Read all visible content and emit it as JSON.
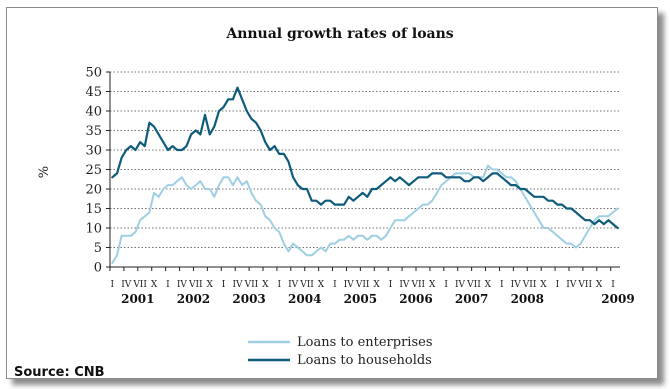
{
  "chart_data": {
    "type": "line",
    "title": "Annual growth rates of loans",
    "ylabel": "%",
    "ylim": [
      0,
      50
    ],
    "yticks": [
      0,
      5,
      10,
      15,
      20,
      25,
      30,
      35,
      40,
      45,
      50
    ],
    "grid": "horizontal dotted",
    "x_start": "2001-01",
    "quarter_labels": [
      "I",
      "IV",
      "VII",
      "X"
    ],
    "years": [
      "2001",
      "2002",
      "2003",
      "2004",
      "2005",
      "2006",
      "2007",
      "2008",
      "2009"
    ],
    "legend_position": "bottom-center",
    "series": [
      {
        "name": "Loans to enterprises",
        "color": "#9fcfe3",
        "values": [
          1,
          3,
          8,
          8,
          8,
          9,
          12,
          13,
          14,
          19,
          18,
          20,
          21,
          21,
          22,
          23,
          21,
          20,
          21,
          22,
          20,
          20,
          18,
          21,
          23,
          23,
          21,
          23,
          21,
          22,
          19,
          17,
          16,
          13,
          12,
          10,
          9,
          6,
          4,
          6,
          5,
          4,
          3,
          3,
          4,
          5,
          4,
          6,
          6,
          7,
          7,
          8,
          7,
          8,
          8,
          7,
          8,
          8,
          7,
          8,
          10,
          12,
          12,
          12,
          13,
          14,
          15,
          16,
          16,
          17,
          19,
          21,
          22,
          23,
          24,
          24,
          24,
          24,
          23,
          23,
          23,
          26,
          25,
          25,
          24,
          23,
          23,
          22,
          20,
          18,
          16,
          14,
          12,
          10,
          10,
          9,
          8,
          7,
          6,
          6,
          5,
          6,
          8,
          10,
          12,
          13,
          13,
          13,
          14,
          15
        ]
      },
      {
        "name": "Loans to households",
        "color": "#0e5b7b",
        "values": [
          23,
          24,
          28,
          30,
          31,
          30,
          32,
          31,
          37,
          36,
          34,
          32,
          30,
          31,
          30,
          30,
          31,
          34,
          35,
          34,
          39,
          34,
          36,
          40,
          41,
          43,
          43,
          46,
          43,
          40,
          38,
          37,
          35,
          32,
          30,
          31,
          29,
          29,
          27,
          23,
          21,
          20,
          20,
          17,
          17,
          16,
          17,
          17,
          16,
          16,
          16,
          18,
          17,
          18,
          19,
          18,
          20,
          20,
          21,
          22,
          23,
          22,
          23,
          22,
          21,
          22,
          23,
          23,
          23,
          24,
          24,
          24,
          23,
          23,
          23,
          23,
          22,
          22,
          23,
          23,
          22,
          23,
          24,
          24,
          23,
          22,
          21,
          21,
          20,
          20,
          19,
          18,
          18,
          18,
          17,
          17,
          16,
          16,
          15,
          15,
          14,
          13,
          12,
          12,
          11,
          12,
          11,
          12,
          11,
          10
        ]
      }
    ]
  },
  "source": "Source: CNB"
}
